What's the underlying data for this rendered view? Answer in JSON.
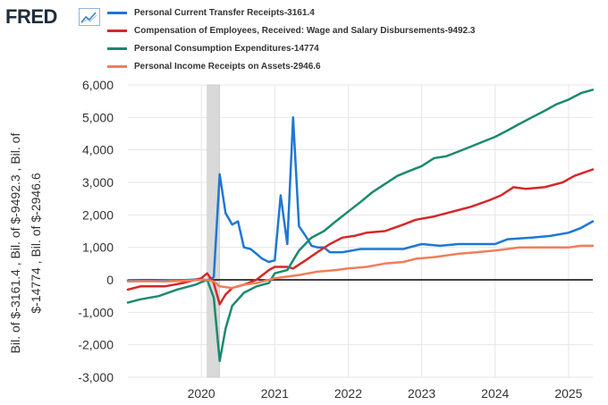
{
  "brand": {
    "logo_text": "FRED",
    "logo_icon": "line-chart-icon"
  },
  "chart_data": {
    "type": "line",
    "title": "",
    "xlabel": "",
    "ylabel": [
      "Bil. of $-3161.4 , Bil. of $-9492.3 , Bil. of",
      "$-14774 , Bil. of $-2946.6"
    ],
    "ylim": [
      -3000,
      6000
    ],
    "xlim": [
      2019.0,
      2025.33
    ],
    "yticks": [
      -3000,
      -2000,
      -1000,
      0,
      1000,
      2000,
      3000,
      4000,
      5000,
      6000
    ],
    "ytick_labels": [
      "-3,000",
      "-2,000",
      "-1,000",
      "0",
      "1,000",
      "2,000",
      "3,000",
      "4,000",
      "5,000",
      "6,000"
    ],
    "xticks": [
      2020,
      2021,
      2022,
      2023,
      2024,
      2025
    ],
    "xtick_labels": [
      "2020",
      "2021",
      "2022",
      "2023",
      "2024",
      "2025"
    ],
    "grid": true,
    "recession_shading": [
      [
        2020.08,
        2020.25
      ]
    ],
    "legend_position": "top",
    "series": [
      {
        "name": "Personal Current Transfer Receipts-3161.4",
        "color": "#1f77d4",
        "points": [
          [
            2019.0,
            -20
          ],
          [
            2019.25,
            -30
          ],
          [
            2019.5,
            -25
          ],
          [
            2019.75,
            -10
          ],
          [
            2020.0,
            20
          ],
          [
            2020.08,
            -10
          ],
          [
            2020.17,
            80
          ],
          [
            2020.25,
            3250
          ],
          [
            2020.33,
            2050
          ],
          [
            2020.42,
            1700
          ],
          [
            2020.5,
            1800
          ],
          [
            2020.58,
            1000
          ],
          [
            2020.67,
            950
          ],
          [
            2020.75,
            800
          ],
          [
            2020.83,
            650
          ],
          [
            2020.92,
            550
          ],
          [
            2021.0,
            600
          ],
          [
            2021.08,
            2600
          ],
          [
            2021.17,
            1100
          ],
          [
            2021.25,
            5000
          ],
          [
            2021.33,
            1650
          ],
          [
            2021.42,
            1350
          ],
          [
            2021.5,
            1050
          ],
          [
            2021.58,
            1000
          ],
          [
            2021.67,
            1000
          ],
          [
            2021.75,
            850
          ],
          [
            2021.92,
            850
          ],
          [
            2022.0,
            880
          ],
          [
            2022.17,
            950
          ],
          [
            2022.5,
            950
          ],
          [
            2022.75,
            950
          ],
          [
            2023.0,
            1100
          ],
          [
            2023.25,
            1050
          ],
          [
            2023.5,
            1100
          ],
          [
            2023.75,
            1100
          ],
          [
            2024.0,
            1100
          ],
          [
            2024.17,
            1250
          ],
          [
            2024.5,
            1300
          ],
          [
            2024.75,
            1350
          ],
          [
            2025.0,
            1450
          ],
          [
            2025.17,
            1600
          ],
          [
            2025.33,
            1800
          ]
        ]
      },
      {
        "name": "Compensation of Employees, Received: Wage and Salary Disbursements-9492.3",
        "color": "#d62728",
        "points": [
          [
            2019.0,
            -300
          ],
          [
            2019.17,
            -200
          ],
          [
            2019.5,
            -200
          ],
          [
            2019.75,
            -100
          ],
          [
            2020.0,
            50
          ],
          [
            2020.08,
            200
          ],
          [
            2020.17,
            -100
          ],
          [
            2020.25,
            -750
          ],
          [
            2020.33,
            -450
          ],
          [
            2020.42,
            -250
          ],
          [
            2020.58,
            -150
          ],
          [
            2020.75,
            0
          ],
          [
            2020.92,
            300
          ],
          [
            2021.0,
            400
          ],
          [
            2021.17,
            400
          ],
          [
            2021.25,
            350
          ],
          [
            2021.42,
            600
          ],
          [
            2021.58,
            850
          ],
          [
            2021.75,
            1100
          ],
          [
            2021.92,
            1300
          ],
          [
            2022.08,
            1350
          ],
          [
            2022.25,
            1450
          ],
          [
            2022.5,
            1500
          ],
          [
            2022.75,
            1700
          ],
          [
            2022.92,
            1850
          ],
          [
            2023.17,
            1950
          ],
          [
            2023.42,
            2100
          ],
          [
            2023.67,
            2250
          ],
          [
            2023.92,
            2450
          ],
          [
            2024.08,
            2600
          ],
          [
            2024.25,
            2850
          ],
          [
            2024.42,
            2800
          ],
          [
            2024.67,
            2850
          ],
          [
            2024.92,
            3000
          ],
          [
            2025.08,
            3200
          ],
          [
            2025.33,
            3400
          ]
        ]
      },
      {
        "name": "Personal Consumption Expenditures-14774",
        "color": "#1a8a6e",
        "points": [
          [
            2019.0,
            -700
          ],
          [
            2019.17,
            -600
          ],
          [
            2019.42,
            -500
          ],
          [
            2019.67,
            -300
          ],
          [
            2019.92,
            -150
          ],
          [
            2020.08,
            0
          ],
          [
            2020.17,
            -550
          ],
          [
            2020.25,
            -2500
          ],
          [
            2020.33,
            -1500
          ],
          [
            2020.42,
            -800
          ],
          [
            2020.58,
            -400
          ],
          [
            2020.75,
            -200
          ],
          [
            2020.92,
            -100
          ],
          [
            2021.0,
            200
          ],
          [
            2021.17,
            300
          ],
          [
            2021.25,
            600
          ],
          [
            2021.33,
            900
          ],
          [
            2021.5,
            1300
          ],
          [
            2021.67,
            1500
          ],
          [
            2021.83,
            1800
          ],
          [
            2022.0,
            2100
          ],
          [
            2022.17,
            2400
          ],
          [
            2022.33,
            2700
          ],
          [
            2022.5,
            2950
          ],
          [
            2022.67,
            3200
          ],
          [
            2022.83,
            3350
          ],
          [
            2023.0,
            3500
          ],
          [
            2023.17,
            3750
          ],
          [
            2023.33,
            3800
          ],
          [
            2023.5,
            3950
          ],
          [
            2023.67,
            4100
          ],
          [
            2023.83,
            4250
          ],
          [
            2024.0,
            4400
          ],
          [
            2024.17,
            4600
          ],
          [
            2024.33,
            4800
          ],
          [
            2024.5,
            5000
          ],
          [
            2024.67,
            5200
          ],
          [
            2024.83,
            5400
          ],
          [
            2025.0,
            5550
          ],
          [
            2025.17,
            5750
          ],
          [
            2025.33,
            5850
          ]
        ]
      },
      {
        "name": "Personal Income Receipts on Assets-2946.6",
        "color": "#f07e5a",
        "points": [
          [
            2019.0,
            -50
          ],
          [
            2019.25,
            -40
          ],
          [
            2019.5,
            -50
          ],
          [
            2019.75,
            -30
          ],
          [
            2020.0,
            0
          ],
          [
            2020.08,
            0
          ],
          [
            2020.17,
            -50
          ],
          [
            2020.25,
            -200
          ],
          [
            2020.42,
            -250
          ],
          [
            2020.58,
            -150
          ],
          [
            2020.75,
            -100
          ],
          [
            2020.92,
            0
          ],
          [
            2021.0,
            50
          ],
          [
            2021.17,
            100
          ],
          [
            2021.33,
            150
          ],
          [
            2021.58,
            250
          ],
          [
            2021.83,
            300
          ],
          [
            2022.0,
            350
          ],
          [
            2022.25,
            400
          ],
          [
            2022.5,
            500
          ],
          [
            2022.75,
            550
          ],
          [
            2022.92,
            650
          ],
          [
            2023.17,
            700
          ],
          [
            2023.5,
            800
          ],
          [
            2023.75,
            850
          ],
          [
            2024.0,
            900
          ],
          [
            2024.17,
            950
          ],
          [
            2024.33,
            1000
          ],
          [
            2024.5,
            1000
          ],
          [
            2024.75,
            1000
          ],
          [
            2025.0,
            1000
          ],
          [
            2025.17,
            1050
          ],
          [
            2025.33,
            1050
          ]
        ]
      }
    ]
  }
}
